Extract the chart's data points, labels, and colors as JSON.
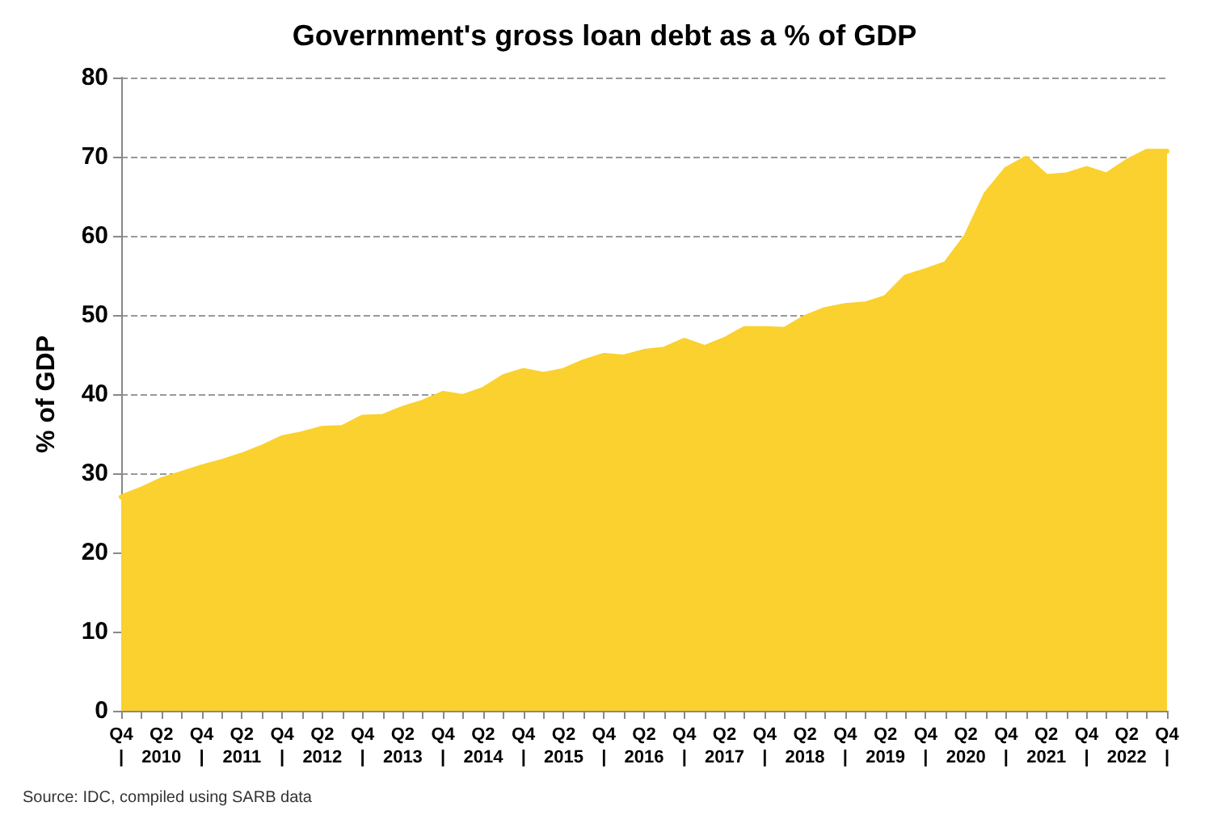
{
  "chart_data": {
    "type": "area",
    "title": "Government's gross loan debt as a % of GDP",
    "ylabel": "% of GDP",
    "annotations": [
      "Source: IDC, compiled using SARB data"
    ],
    "categories": [
      "Q4\n|",
      null,
      "Q2\n2010",
      null,
      "Q4\n|",
      null,
      "Q2\n2011",
      null,
      "Q4\n|",
      null,
      "Q2\n2012",
      null,
      "Q4\n|",
      null,
      "Q2\n2013",
      null,
      "Q4\n|",
      null,
      "Q2\n2014",
      null,
      "Q4\n|",
      null,
      "Q2\n2015",
      null,
      "Q4\n|",
      null,
      "Q2\n2016",
      null,
      "Q4\n|",
      null,
      "Q2\n2017",
      null,
      "Q4\n|",
      null,
      "Q2\n2018",
      null,
      "Q4\n|",
      null,
      "Q2\n2019",
      null,
      "Q4\n|",
      null,
      "Q2\n2020",
      null,
      "Q4\n|",
      null,
      "Q2\n2021",
      null,
      "Q4\n|",
      null,
      "Q2\n2022",
      null,
      "Q4\n|"
    ],
    "series": [
      {
        "color": "#fad12e",
        "values": [
          27,
          28,
          29.2,
          30,
          30.8,
          31.5,
          32.3,
          33.3,
          34.5,
          35,
          35.7,
          35.8,
          37.1,
          37.2,
          38.2,
          39,
          40.1,
          39.7,
          40.6,
          42.2,
          43,
          42.5,
          43,
          44.1,
          44.9,
          44.7,
          45.4,
          45.7,
          46.8,
          45.9,
          46.9,
          48.3,
          48.3,
          48.2,
          49.7,
          50.7,
          51.2,
          51.4,
          52.2,
          54.8,
          55.6,
          56.5,
          59.9,
          65.3,
          68.4,
          69.8,
          67.5,
          67.7,
          68.5,
          67.7,
          69.4,
          70.7,
          70.7
        ]
      }
    ],
    "ylim": [
      0,
      80
    ],
    "yticks": [
      0,
      10,
      20,
      30,
      40,
      50,
      60,
      70,
      80
    ],
    "grid": "y",
    "marker": "none",
    "line_style": "solid"
  }
}
